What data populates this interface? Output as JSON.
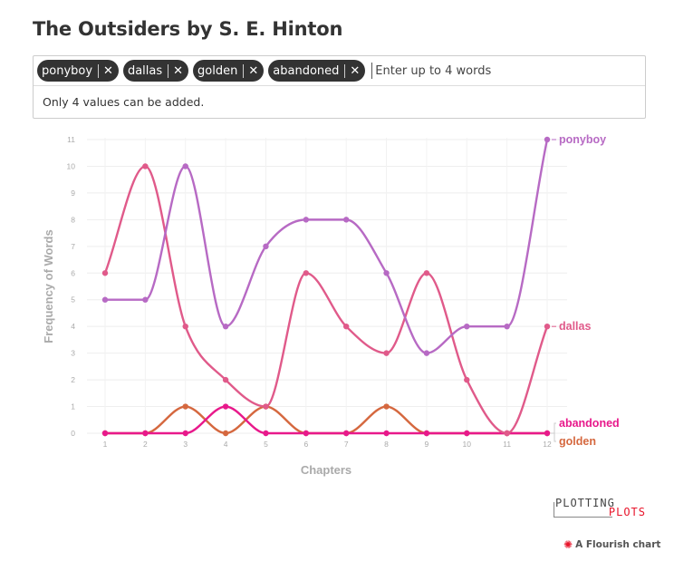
{
  "title": "The Outsiders by S. E. Hinton",
  "word_input": {
    "tags": [
      {
        "label": "ponyboy"
      },
      {
        "label": "dallas"
      },
      {
        "label": "golden"
      },
      {
        "label": "abandoned"
      }
    ],
    "remove_glyph": "✕",
    "placeholder": "Enter up to 4 words",
    "message": "Only 4 values can be added."
  },
  "chart_data": {
    "type": "line",
    "xlabel": "Chapters",
    "ylabel": "Frequency of Words",
    "x": [
      1,
      2,
      3,
      4,
      5,
      6,
      7,
      8,
      9,
      10,
      11,
      12
    ],
    "ylim": [
      0,
      11
    ],
    "yticks": [
      0,
      1,
      2,
      3,
      4,
      5,
      6,
      7,
      8,
      9,
      10,
      11
    ],
    "grid": true,
    "legend": "direct labels at line ends (right)",
    "series": [
      {
        "name": "ponyboy",
        "color": "#b76ac4",
        "values": [
          5,
          5,
          10,
          4,
          7,
          8,
          8,
          6,
          3,
          4,
          4,
          11
        ]
      },
      {
        "name": "dallas",
        "color": "#e05a8a",
        "values": [
          6,
          10,
          4,
          2,
          1,
          6,
          4,
          3,
          6,
          2,
          0,
          4
        ]
      },
      {
        "name": "abandoned",
        "color": "#e8198b",
        "values": [
          0,
          0,
          0,
          1,
          0,
          0,
          0,
          0,
          0,
          0,
          0,
          0
        ]
      },
      {
        "name": "golden",
        "color": "#d5683f",
        "values": [
          0,
          0,
          1,
          0,
          1,
          0,
          0,
          1,
          0,
          0,
          0,
          0
        ]
      }
    ]
  },
  "branding": {
    "logo_top": "PLOTTING",
    "logo_bottom": "PLOTS",
    "credit_icon": "flourish-star-icon",
    "credit": "A Flourish chart"
  }
}
